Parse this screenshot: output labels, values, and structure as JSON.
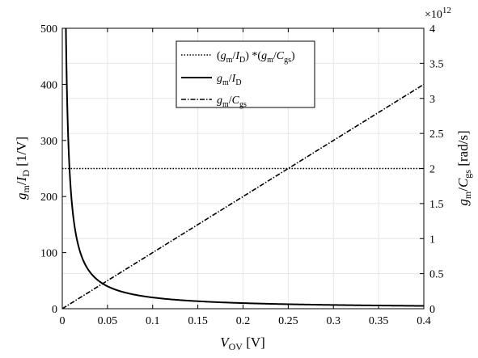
{
  "chart_data": {
    "type": "line",
    "x": {
      "min": 0,
      "max": 0.4,
      "ticks": [
        0,
        0.05,
        0.1,
        0.15,
        0.2,
        0.25,
        0.3,
        0.35,
        0.4
      ],
      "tick_labels": [
        "0",
        "0.05",
        "0.1",
        "0.15",
        "0.2",
        "0.25",
        "0.3",
        "0.35",
        "0.4"
      ],
      "label": {
        "main": "V",
        "sub": "OV",
        "unit": " [V]"
      }
    },
    "y_left": {
      "min": 0,
      "max": 500,
      "ticks": [
        0,
        100,
        200,
        300,
        400,
        500
      ],
      "tick_labels": [
        "0",
        "100",
        "200",
        "300",
        "400",
        "500"
      ],
      "label": {
        "a": "g",
        "a_sub": "m",
        "slash": "/",
        "b": "I",
        "b_sub": "D",
        "unit": " [1/V]"
      }
    },
    "y_right": {
      "min": 0,
      "max": 4,
      "ticks": [
        0,
        0.5,
        1,
        1.5,
        2,
        2.5,
        3,
        3.5,
        4
      ],
      "tick_labels": [
        "0",
        "0.5",
        "1",
        "1.5",
        "2",
        "2.5",
        "3",
        "3.5",
        "4"
      ],
      "exponent_base": "×10",
      "exponent_power": "12",
      "label": {
        "a": "g",
        "a_sub": "m",
        "slash": "/",
        "b": "C",
        "b_sub": "gs",
        "unit": " [rad/s]"
      }
    },
    "series": [
      {
        "name": "(gm/ID)*(gm/Cgs)",
        "axis": "left",
        "style": "dotted",
        "x": [
          0.0,
          0.4
        ],
        "y": [
          250,
          250
        ]
      },
      {
        "name": "gm/ID",
        "axis": "left",
        "style": "solid",
        "x": [
          0.004,
          0.005,
          0.006,
          0.008,
          0.01,
          0.015,
          0.02,
          0.03,
          0.04,
          0.05,
          0.06,
          0.08,
          0.1,
          0.15,
          0.2,
          0.25,
          0.3,
          0.35,
          0.4
        ],
        "y": [
          500,
          400,
          333.3,
          250,
          200,
          133.3,
          100,
          66.7,
          50,
          40,
          33.3,
          25,
          20,
          13.3,
          10,
          8,
          6.7,
          5.7,
          5
        ]
      },
      {
        "name": "gm/Cgs",
        "axis": "right",
        "style": "dashdot",
        "x": [
          0.0,
          0.4
        ],
        "y": [
          0,
          3.2
        ]
      }
    ],
    "legend": {
      "position": "top-center",
      "entries": [
        {
          "parts": [
            {
              "t": "(",
              "i": false,
              "s": false
            },
            {
              "t": "g",
              "i": true,
              "s": false
            },
            {
              "t": "m",
              "i": false,
              "s": true
            },
            {
              "t": "/",
              "i": false,
              "s": false
            },
            {
              "t": "I",
              "i": true,
              "s": false
            },
            {
              "t": "D",
              "i": false,
              "s": true
            },
            {
              "t": ") *(",
              "i": false,
              "s": false
            },
            {
              "t": "g",
              "i": true,
              "s": false
            },
            {
              "t": "m",
              "i": false,
              "s": true
            },
            {
              "t": "/",
              "i": false,
              "s": false
            },
            {
              "t": "C",
              "i": true,
              "s": false
            },
            {
              "t": "gs",
              "i": false,
              "s": true
            },
            {
              "t": ")",
              "i": false,
              "s": false
            }
          ]
        },
        {
          "parts": [
            {
              "t": "g",
              "i": true,
              "s": false
            },
            {
              "t": "m",
              "i": false,
              "s": true
            },
            {
              "t": "/",
              "i": false,
              "s": false
            },
            {
              "t": "I",
              "i": true,
              "s": false
            },
            {
              "t": "D",
              "i": false,
              "s": true
            }
          ]
        },
        {
          "parts": [
            {
              "t": "g",
              "i": true,
              "s": false
            },
            {
              "t": "m",
              "i": false,
              "s": true
            },
            {
              "t": "/",
              "i": false,
              "s": false
            },
            {
              "t": "C",
              "i": true,
              "s": false
            },
            {
              "t": "gs",
              "i": false,
              "s": true
            }
          ]
        }
      ]
    },
    "grid": true,
    "colors": {
      "line": "#000000",
      "grid": "#e6e6e6"
    }
  }
}
